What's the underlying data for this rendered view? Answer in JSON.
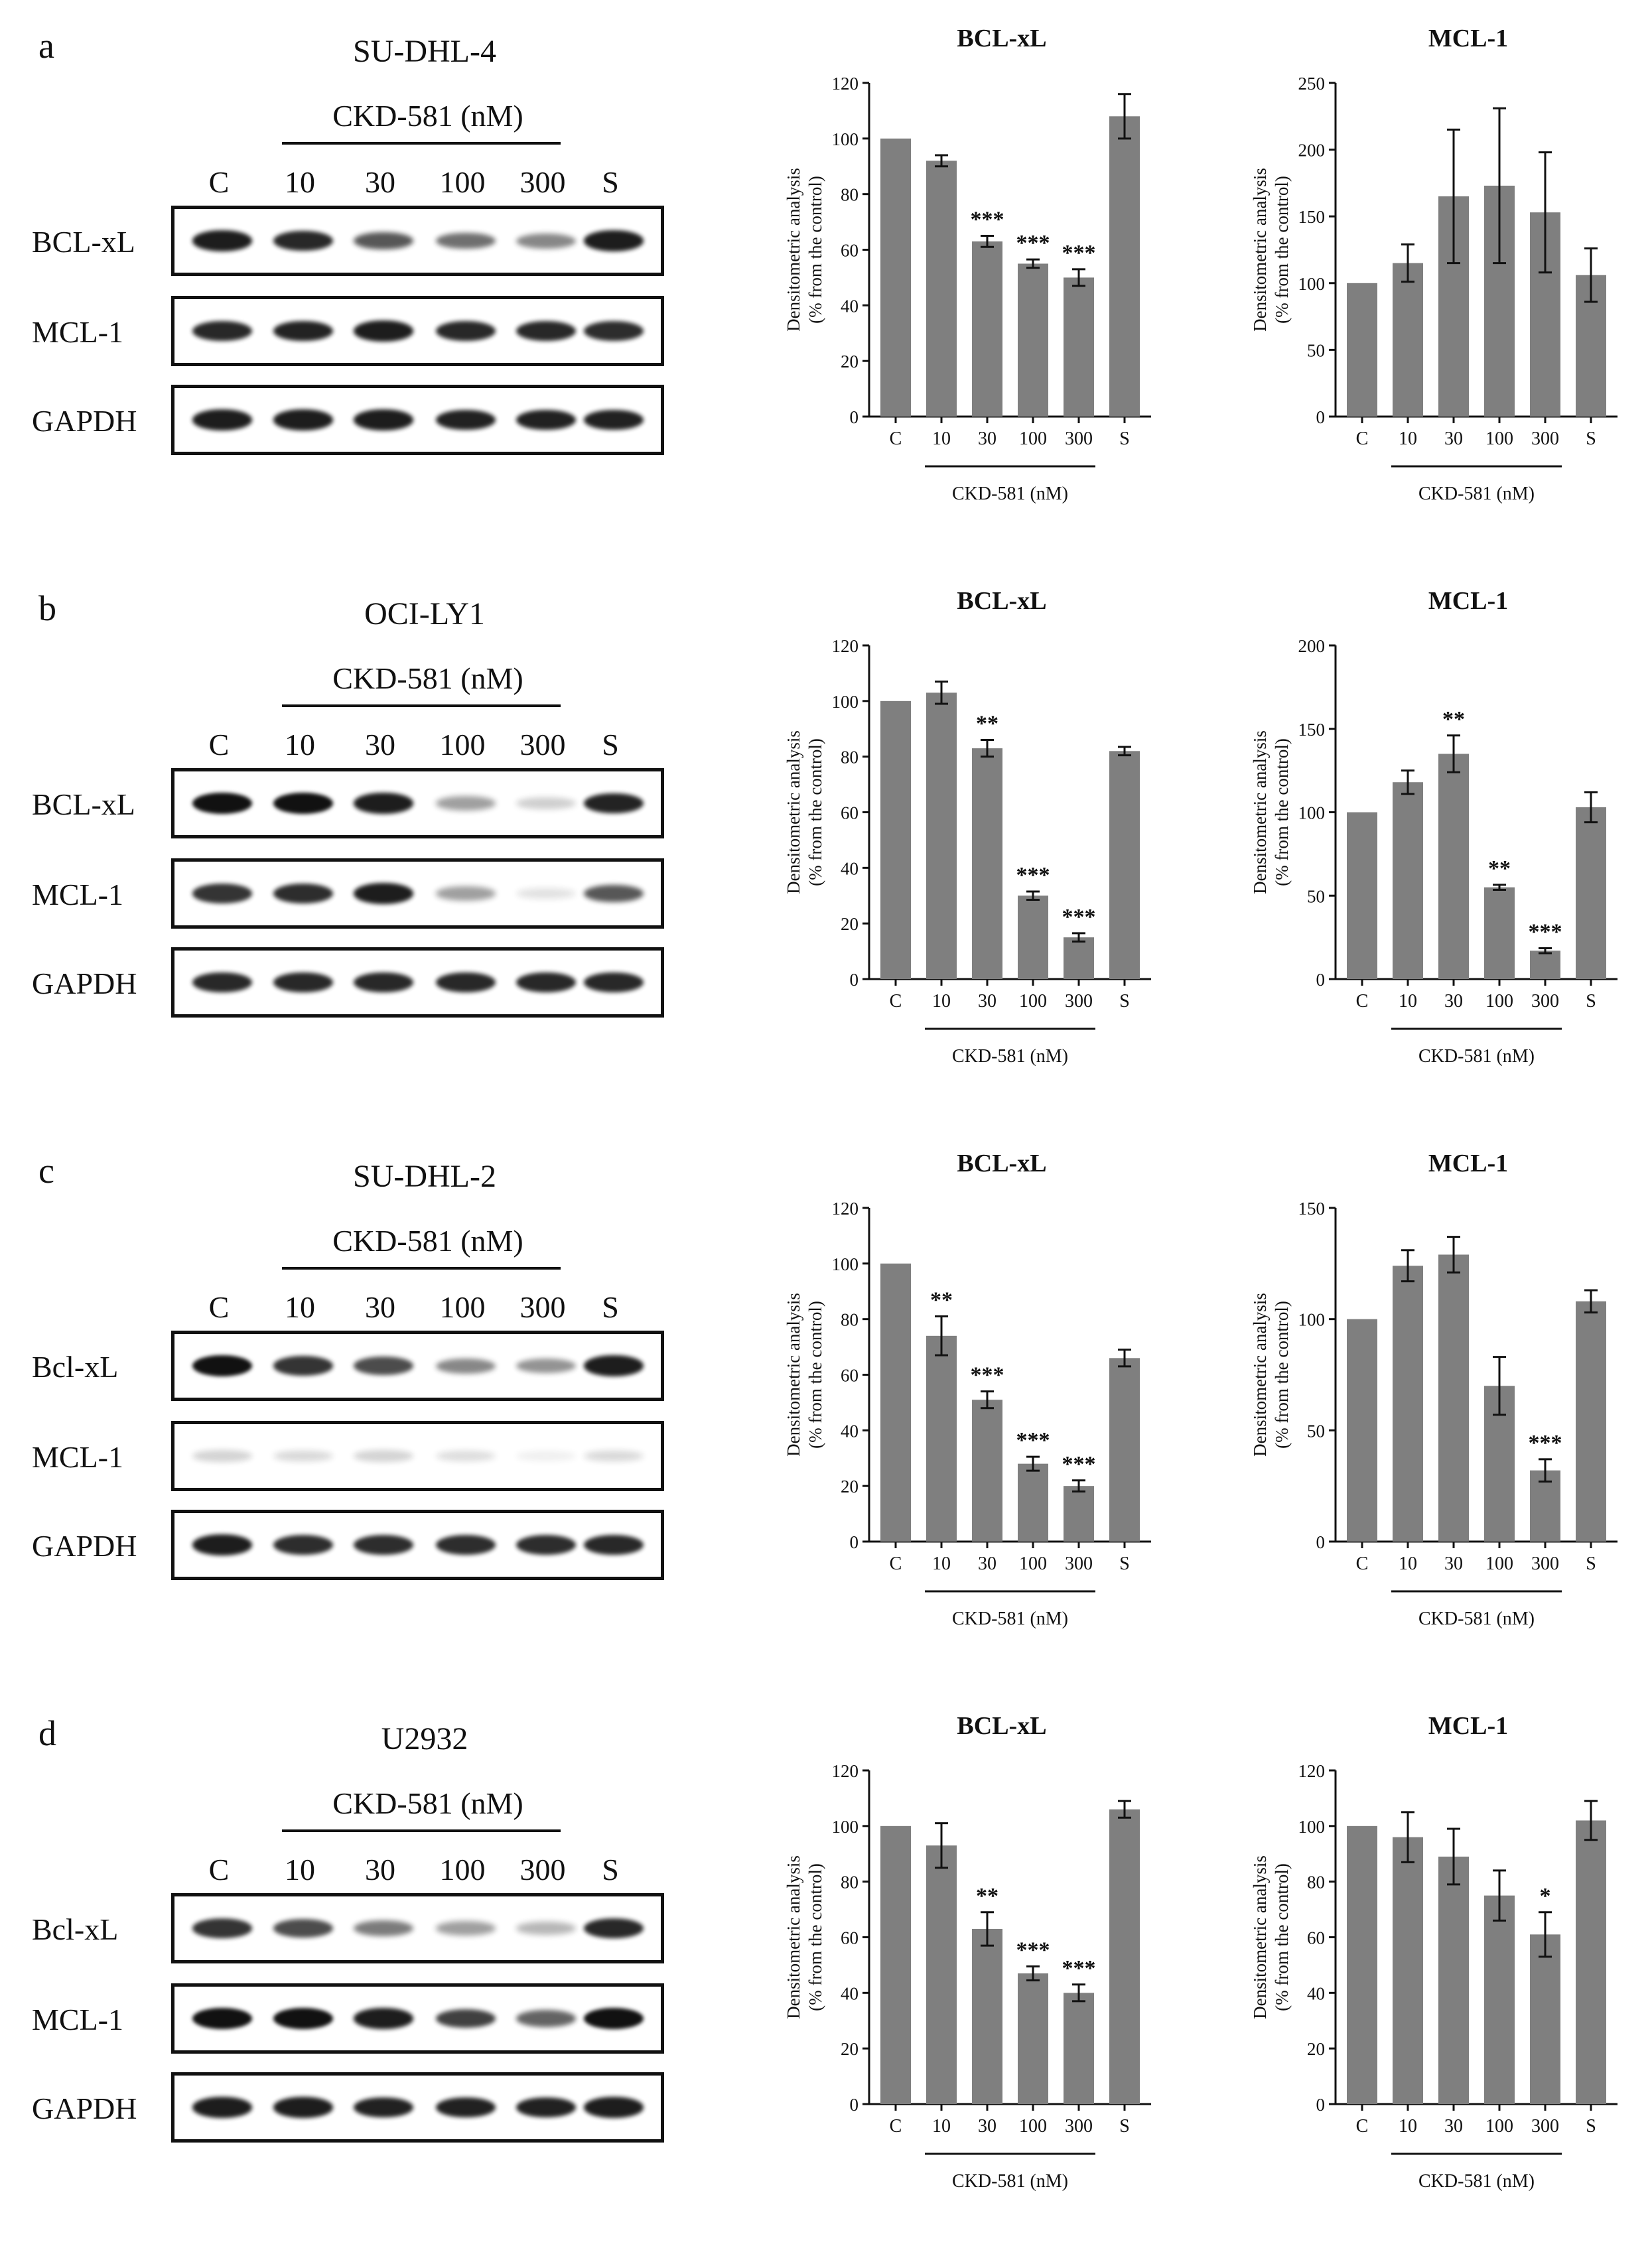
{
  "panels": [
    {
      "letter": "a",
      "cell_line": "SU-DHL-4",
      "treatment": "CKD-581 (nM)",
      "lanes": [
        "C",
        "10",
        "30",
        "100",
        "300",
        "S"
      ],
      "blots": [
        {
          "name": "BCL-xL",
          "intensity": [
            0.95,
            0.9,
            0.7,
            0.6,
            0.5,
            0.95
          ]
        },
        {
          "name": "MCL-1",
          "intensity": [
            0.9,
            0.92,
            0.95,
            0.9,
            0.9,
            0.88
          ]
        },
        {
          "name": "GAPDH",
          "intensity": [
            0.95,
            0.95,
            0.95,
            0.93,
            0.93,
            0.93
          ]
        }
      ]
    },
    {
      "letter": "b",
      "cell_line": "OCI-LY1",
      "treatment": "CKD-581 (nM)",
      "lanes": [
        "C",
        "10",
        "30",
        "100",
        "300",
        "S"
      ],
      "blots": [
        {
          "name": "BCL-xL",
          "intensity": [
            1.0,
            1.0,
            0.95,
            0.4,
            0.2,
            0.92
          ]
        },
        {
          "name": "MCL-1",
          "intensity": [
            0.85,
            0.88,
            0.95,
            0.4,
            0.12,
            0.7
          ]
        },
        {
          "name": "GAPDH",
          "intensity": [
            0.9,
            0.9,
            0.9,
            0.9,
            0.9,
            0.9
          ]
        }
      ]
    },
    {
      "letter": "c",
      "cell_line": "SU-DHL-2",
      "treatment": "CKD-581 (nM)",
      "lanes": [
        "C",
        "10",
        "30",
        "100",
        "300",
        "S"
      ],
      "blots": [
        {
          "name": "Bcl-xL",
          "intensity": [
            1.0,
            0.85,
            0.75,
            0.5,
            0.45,
            0.95
          ]
        },
        {
          "name": "MCL-1",
          "intensity": [
            0.18,
            0.16,
            0.18,
            0.14,
            0.06,
            0.16
          ]
        },
        {
          "name": "GAPDH",
          "intensity": [
            0.95,
            0.88,
            0.88,
            0.88,
            0.88,
            0.9
          ]
        }
      ]
    },
    {
      "letter": "d",
      "cell_line": "U2932",
      "treatment": "CKD-581 (nM)",
      "lanes": [
        "C",
        "10",
        "30",
        "100",
        "300",
        "S"
      ],
      "blots": [
        {
          "name": "Bcl-xL",
          "intensity": [
            0.85,
            0.75,
            0.55,
            0.4,
            0.3,
            0.9
          ]
        },
        {
          "name": "MCL-1",
          "intensity": [
            1.0,
            1.0,
            0.95,
            0.8,
            0.65,
            1.0
          ]
        },
        {
          "name": "GAPDH",
          "intensity": [
            0.95,
            0.95,
            0.93,
            0.93,
            0.93,
            0.95
          ]
        }
      ]
    }
  ],
  "chart_data": [
    {
      "type": "bar",
      "panel": "a",
      "title": "BCL-xL",
      "ylabel": "Densitometric analysis",
      "ylabel2": "(% from the control)",
      "xlabel": "CKD-581 (nM)",
      "categories": [
        "C",
        "10",
        "30",
        "100",
        "300",
        "S"
      ],
      "values": [
        100,
        92,
        63,
        55,
        50,
        108
      ],
      "errors": [
        0,
        2,
        2,
        1.5,
        3,
        8
      ],
      "significance": [
        "",
        "",
        "***",
        "***",
        "***",
        ""
      ],
      "ylim": [
        0,
        120
      ],
      "yticks": [
        0,
        20,
        40,
        60,
        80,
        100,
        120
      ],
      "bar_color": "#7f7f7f"
    },
    {
      "type": "bar",
      "panel": "a",
      "title": "MCL-1",
      "ylabel": "Densitometric analysis",
      "ylabel2": "(% from the control)",
      "xlabel": "CKD-581 (nM)",
      "categories": [
        "C",
        "10",
        "30",
        "100",
        "300",
        "S"
      ],
      "values": [
        100,
        115,
        165,
        173,
        153,
        106
      ],
      "errors": [
        0,
        14,
        50,
        58,
        45,
        20
      ],
      "significance": [
        "",
        "",
        "",
        "",
        "",
        ""
      ],
      "ylim": [
        0,
        250
      ],
      "yticks": [
        0,
        50,
        100,
        150,
        200,
        250
      ],
      "bar_color": "#7f7f7f"
    },
    {
      "type": "bar",
      "panel": "b",
      "title": "BCL-xL",
      "ylabel": "Densitometric analysis",
      "ylabel2": "(% from the control)",
      "xlabel": "CKD-581 (nM)",
      "categories": [
        "C",
        "10",
        "30",
        "100",
        "300",
        "S"
      ],
      "values": [
        100,
        103,
        83,
        30,
        15,
        82
      ],
      "errors": [
        0,
        4,
        3,
        1.5,
        1.5,
        1.5
      ],
      "significance": [
        "",
        "",
        "**",
        "***",
        "***",
        ""
      ],
      "ylim": [
        0,
        120
      ],
      "yticks": [
        0,
        20,
        40,
        60,
        80,
        100,
        120
      ],
      "bar_color": "#7f7f7f"
    },
    {
      "type": "bar",
      "panel": "b",
      "title": "MCL-1",
      "ylabel": "Densitometric analysis",
      "ylabel2": "(% from the control)",
      "xlabel": "CKD-581 (nM)",
      "categories": [
        "C",
        "10",
        "30",
        "100",
        "300",
        "S"
      ],
      "values": [
        100,
        118,
        135,
        55,
        17,
        103
      ],
      "errors": [
        0,
        7,
        11,
        1.5,
        1.5,
        9
      ],
      "significance": [
        "",
        "",
        "**",
        "**",
        "***",
        ""
      ],
      "ylim": [
        0,
        200
      ],
      "yticks": [
        0,
        50,
        100,
        150,
        200
      ],
      "bar_color": "#7f7f7f"
    },
    {
      "type": "bar",
      "panel": "c",
      "title": "BCL-xL",
      "ylabel": "Densitometric analysis",
      "ylabel2": "(% from the control)",
      "xlabel": "CKD-581 (nM)",
      "categories": [
        "C",
        "10",
        "30",
        "100",
        "300",
        "S"
      ],
      "values": [
        100,
        74,
        51,
        28,
        20,
        66
      ],
      "errors": [
        0,
        7,
        3,
        2.5,
        2,
        3
      ],
      "significance": [
        "",
        "**",
        "***",
        "***",
        "***",
        ""
      ],
      "ylim": [
        0,
        120
      ],
      "yticks": [
        0,
        20,
        40,
        60,
        80,
        100,
        120
      ],
      "bar_color": "#7f7f7f"
    },
    {
      "type": "bar",
      "panel": "c",
      "title": "MCL-1",
      "ylabel": "Densitometric analysis",
      "ylabel2": "(% from the control)",
      "xlabel": "CKD-581 (nM)",
      "categories": [
        "C",
        "10",
        "30",
        "100",
        "300",
        "S"
      ],
      "values": [
        100,
        124,
        129,
        70,
        32,
        108
      ],
      "errors": [
        0,
        7,
        8,
        13,
        5,
        5
      ],
      "significance": [
        "",
        "",
        "",
        "",
        "***",
        ""
      ],
      "ylim": [
        0,
        150
      ],
      "yticks": [
        0,
        50,
        100,
        150
      ],
      "bar_color": "#7f7f7f"
    },
    {
      "type": "bar",
      "panel": "d",
      "title": "BCL-xL",
      "ylabel": "Densitometric analysis",
      "ylabel2": "(% from the control)",
      "xlabel": "CKD-581 (nM)",
      "categories": [
        "C",
        "10",
        "30",
        "100",
        "300",
        "S"
      ],
      "values": [
        100,
        93,
        63,
        47,
        40,
        106
      ],
      "errors": [
        0,
        8,
        6,
        2.5,
        3,
        3
      ],
      "significance": [
        "",
        "",
        "**",
        "***",
        "***",
        ""
      ],
      "ylim": [
        0,
        120
      ],
      "yticks": [
        0,
        20,
        40,
        60,
        80,
        100,
        120
      ],
      "bar_color": "#7f7f7f"
    },
    {
      "type": "bar",
      "panel": "d",
      "title": "MCL-1",
      "ylabel": "Densitometric analysis",
      "ylabel2": "(% from the control)",
      "xlabel": "CKD-581 (nM)",
      "categories": [
        "C",
        "10",
        "30",
        "100",
        "300",
        "S"
      ],
      "values": [
        100,
        96,
        89,
        75,
        61,
        102
      ],
      "errors": [
        0,
        9,
        10,
        9,
        8,
        7
      ],
      "significance": [
        "",
        "",
        "",
        "",
        "*",
        ""
      ],
      "ylim": [
        0,
        120
      ],
      "yticks": [
        0,
        20,
        40,
        60,
        80,
        100,
        120
      ],
      "bar_color": "#7f7f7f"
    }
  ]
}
